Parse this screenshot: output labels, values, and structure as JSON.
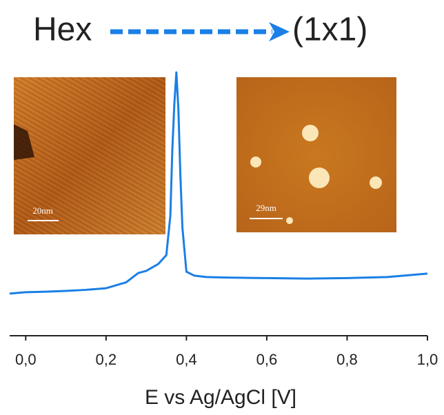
{
  "chart_data": {
    "type": "line",
    "title_from": "Hex",
    "title_to": "(1x1)",
    "x_label": "E vs Ag/AgCl [V]",
    "x": [
      -0.04,
      0.0,
      0.05,
      0.1,
      0.15,
      0.2,
      0.25,
      0.28,
      0.3,
      0.33,
      0.35,
      0.36,
      0.365,
      0.37,
      0.375,
      0.38,
      0.385,
      0.39,
      0.4,
      0.42,
      0.45,
      0.5,
      0.6,
      0.7,
      0.8,
      0.9,
      1.0
    ],
    "series": [
      {
        "color": "#1a7fe6",
        "values": [
          15.8,
          16.3,
          16.5,
          16.8,
          17.2,
          17.8,
          20,
          23.5,
          24.3,
          26.9,
          30.2,
          45,
          70,
          87,
          98.7,
          85,
          60,
          40.6,
          24,
          22.5,
          22,
          21.8,
          21.6,
          21.4,
          21.6,
          22,
          23.3
        ]
      }
    ],
    "xlim": [
      -0.04,
      1.0
    ],
    "ylim": [
      0,
      100
    ],
    "xticks": [
      {
        "value": 0,
        "label": "0,0"
      },
      {
        "value": 0.2,
        "label": "0,2"
      },
      {
        "value": 0.4,
        "label": "0,4"
      },
      {
        "value": 0.6,
        "label": "0,6"
      },
      {
        "value": 0.8,
        "label": "0,8"
      },
      {
        "value": 1.0,
        "label": "1,0"
      }
    ],
    "insets": [
      {
        "scale_label": "20nm"
      },
      {
        "scale_label": "29nm"
      }
    ]
  }
}
